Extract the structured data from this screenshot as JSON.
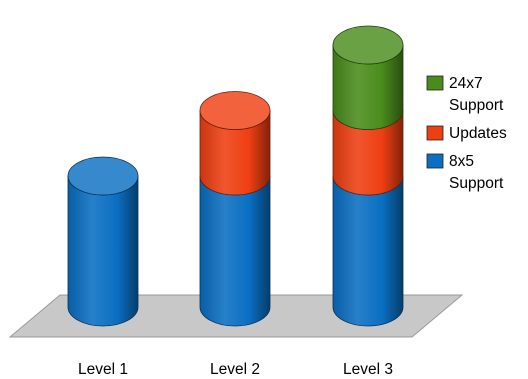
{
  "chart_data": {
    "type": "bar",
    "style": "3d-stacked-cylinder",
    "categories": [
      "Level 1",
      "Level 2",
      "Level 3"
    ],
    "series": [
      {
        "name": "8x5 Support",
        "values": [
          1,
          1,
          1
        ],
        "color": "#0a6fc2",
        "legend_lines": [
          "8x5",
          "Support"
        ]
      },
      {
        "name": "Updates",
        "values": [
          0,
          0.5,
          0.5
        ],
        "color": "#ee3f12",
        "legend_lines": [
          "Updates"
        ]
      },
      {
        "name": "24x7 Support",
        "values": [
          0,
          0,
          0.5
        ],
        "color": "#4a8c1c",
        "legend_lines": [
          "24x7",
          "Support"
        ]
      }
    ],
    "ylim": [
      0,
      2
    ],
    "grid": false,
    "legend_position": "right",
    "floor_color": "#c8c8c8"
  }
}
